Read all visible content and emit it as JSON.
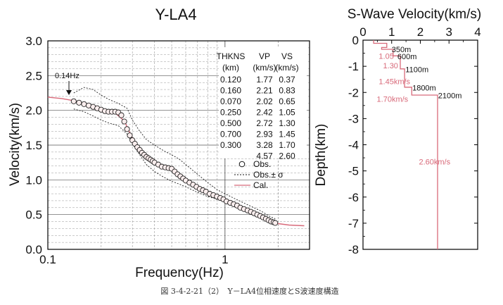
{
  "chart_data": [
    {
      "type": "scatter",
      "title": "Y-LA4",
      "xlabel": "Frequency(Hz)",
      "ylabel": "Velocity(km/s)",
      "xscale": "log",
      "xlim": [
        0.1,
        3
      ],
      "ylim": [
        0.0,
        3.0
      ],
      "x_ticks": [
        "0.1",
        "1"
      ],
      "y_ticks": [
        "0.0",
        "0.5",
        "1.0",
        "1.5",
        "2.0",
        "2.5",
        "3.0"
      ],
      "grid": true,
      "annotations": [
        "0.14Hz"
      ],
      "table": {
        "headers": [
          "THKNS",
          "VP",
          "VS"
        ],
        "units": [
          "(km)",
          "(km/s)",
          "(km/s)"
        ],
        "rows": [
          [
            "0.120",
            "1.77",
            "0.37"
          ],
          [
            "0.160",
            "2.21",
            "0.83"
          ],
          [
            "0.070",
            "2.02",
            "0.65"
          ],
          [
            "0.250",
            "2.42",
            "1.05"
          ],
          [
            "0.500",
            "2.72",
            "1.30"
          ],
          [
            "0.700",
            "2.93",
            "1.45"
          ],
          [
            "0.300",
            "3.28",
            "1.70"
          ],
          [
            "",
            "4.57",
            "2.60"
          ]
        ]
      },
      "legend": {
        "placement": "right",
        "entries": [
          "Obs.",
          "Obs.± σ",
          "Cal."
        ]
      },
      "series": [
        {
          "name": "Obs.",
          "x": [
            0.14,
            0.15,
            0.16,
            0.17,
            0.18,
            0.19,
            0.2,
            0.21,
            0.22,
            0.23,
            0.24,
            0.25,
            0.26,
            0.27,
            0.28,
            0.29,
            0.3,
            0.31,
            0.32,
            0.33,
            0.34,
            0.35,
            0.36,
            0.37,
            0.38,
            0.39,
            0.4,
            0.42,
            0.44,
            0.46,
            0.48,
            0.5,
            0.52,
            0.54,
            0.56,
            0.58,
            0.6,
            0.63,
            0.66,
            0.69,
            0.72,
            0.75,
            0.78,
            0.82,
            0.86,
            0.9,
            0.94,
            0.98,
            1.02,
            1.07,
            1.12,
            1.17,
            1.22,
            1.28,
            1.34,
            1.4,
            1.46,
            1.52,
            1.58,
            1.64,
            1.7,
            1.76,
            1.82,
            1.88,
            1.92
          ],
          "y": [
            2.13,
            2.11,
            2.09,
            2.07,
            2.05,
            2.03,
            2.01,
            1.99,
            1.98,
            1.98,
            1.98,
            1.97,
            1.93,
            1.84,
            1.73,
            1.64,
            1.57,
            1.52,
            1.47,
            1.43,
            1.39,
            1.36,
            1.33,
            1.31,
            1.29,
            1.27,
            1.25,
            1.22,
            1.19,
            1.18,
            1.17,
            1.16,
            1.12,
            1.08,
            1.05,
            1.02,
            0.99,
            0.96,
            0.93,
            0.9,
            0.87,
            0.85,
            0.83,
            0.8,
            0.78,
            0.76,
            0.74,
            0.72,
            0.69,
            0.67,
            0.65,
            0.63,
            0.6,
            0.58,
            0.56,
            0.54,
            0.52,
            0.5,
            0.48,
            0.46,
            0.44,
            0.42,
            0.4,
            0.39,
            0.38
          ]
        },
        {
          "name": "Obs.+σ",
          "x": [
            0.14,
            0.16,
            0.18,
            0.2,
            0.22,
            0.25,
            0.28,
            0.3,
            0.33,
            0.36,
            0.4,
            0.45,
            0.5,
            0.55,
            0.6,
            0.7,
            0.8,
            0.9,
            1.0,
            1.2,
            1.4,
            1.6,
            1.8,
            1.92
          ],
          "y": [
            2.25,
            2.33,
            2.3,
            2.22,
            2.16,
            2.1,
            2.03,
            1.86,
            1.7,
            1.58,
            1.5,
            1.42,
            1.36,
            1.3,
            1.22,
            1.08,
            0.96,
            0.86,
            0.8,
            0.7,
            0.62,
            0.55,
            0.47,
            0.44
          ]
        },
        {
          "name": "Obs.-σ",
          "x": [
            0.14,
            0.16,
            0.18,
            0.2,
            0.22,
            0.25,
            0.28,
            0.3,
            0.33,
            0.36,
            0.4,
            0.45,
            0.5,
            0.55,
            0.6,
            0.7,
            0.8,
            0.9,
            1.0,
            1.2,
            1.4,
            1.6,
            1.8,
            1.92
          ],
          "y": [
            2.02,
            1.98,
            1.92,
            1.86,
            1.82,
            1.78,
            1.66,
            1.52,
            1.36,
            1.22,
            1.12,
            1.04,
            0.98,
            0.94,
            0.9,
            0.82,
            0.76,
            0.72,
            0.68,
            0.6,
            0.52,
            0.45,
            0.38,
            0.35
          ]
        },
        {
          "name": "Cal.",
          "x": [
            0.1,
            0.12,
            0.14,
            0.17,
            0.2,
            0.24,
            0.27,
            0.3,
            0.33,
            0.36,
            0.4,
            0.45,
            0.5,
            0.55,
            0.6,
            0.7,
            0.8,
            0.9,
            1.0,
            1.2,
            1.4,
            1.6,
            1.8,
            2.0,
            2.3,
            2.8
          ],
          "y": [
            2.19,
            2.17,
            2.14,
            2.08,
            2.01,
            1.96,
            1.85,
            1.6,
            1.45,
            1.35,
            1.26,
            1.21,
            1.16,
            1.08,
            1.0,
            0.89,
            0.83,
            0.77,
            0.72,
            0.63,
            0.54,
            0.46,
            0.4,
            0.37,
            0.35,
            0.34
          ]
        }
      ]
    },
    {
      "type": "line",
      "title": "S-Wave Velocity(km/s)",
      "xlabel": "",
      "ylabel": "Depth(km)",
      "xlim": [
        0,
        4
      ],
      "ylim": [
        -8,
        0
      ],
      "x_ticks": [
        "0",
        "1",
        "2",
        "3",
        "4"
      ],
      "y_ticks": [
        "0",
        "-1",
        "-2",
        "-3",
        "-4",
        "-5",
        "-6",
        "-7",
        "-8"
      ],
      "x_axis_position": "top",
      "series": [
        {
          "name": "",
          "x": [
            0.37,
            0.37,
            0.83,
            0.83,
            0.65,
            0.65,
            1.05,
            1.05,
            1.3,
            1.3,
            1.45,
            1.45,
            1.7,
            1.7,
            2.6,
            2.6
          ],
          "y": [
            0,
            -0.12,
            -0.12,
            -0.28,
            -0.28,
            -0.35,
            -0.35,
            -0.6,
            -0.6,
            -1.1,
            -1.1,
            -1.8,
            -1.8,
            -2.1,
            -2.1,
            -8
          ]
        }
      ],
      "depth_labels": [
        {
          "text": "350m",
          "x": 1.0,
          "y": -0.35
        },
        {
          "text": "600m",
          "x": 1.2,
          "y": -0.62
        },
        {
          "text": "1100m",
          "x": 1.48,
          "y": -1.12
        },
        {
          "text": "1800m",
          "x": 1.72,
          "y": -1.82
        },
        {
          "text": "2100m",
          "x": 2.62,
          "y": -2.12
        }
      ],
      "velocity_labels": [
        {
          "text": "1.05",
          "x": 0.55,
          "y": -0.6
        },
        {
          "text": "1.30",
          "x": 0.7,
          "y": -0.97
        },
        {
          "text": "1.45km/s",
          "x": 0.55,
          "y": -1.57
        },
        {
          "text": "1.70km/s",
          "x": 0.48,
          "y": -2.25
        },
        {
          "text": "2.60km/s",
          "x": 1.95,
          "y": -4.65
        }
      ]
    }
  ],
  "caption": "図 3-4-2-21（2）　Y－LA4位相速度とS波速度構造"
}
